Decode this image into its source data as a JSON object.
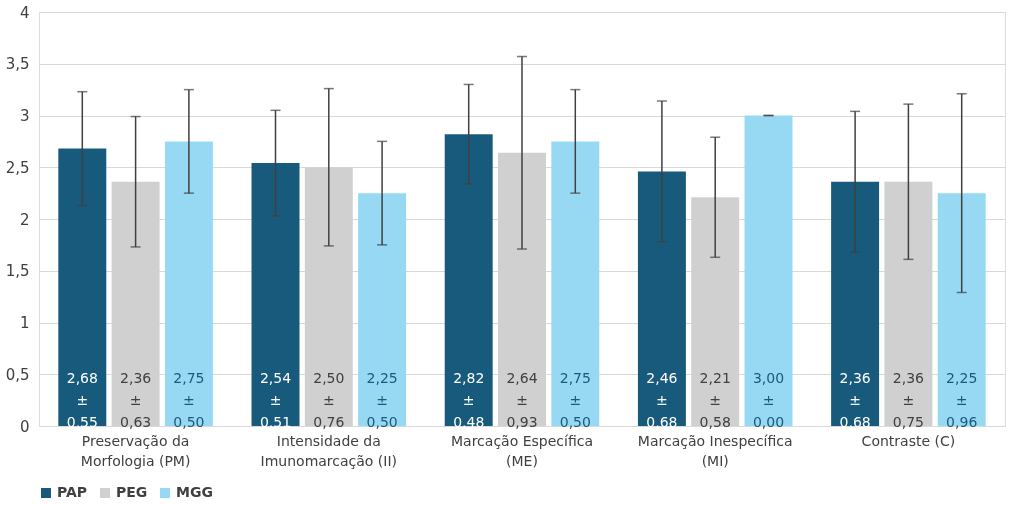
{
  "chart_data": {
    "type": "bar",
    "categories": [
      "Preservação da\nMorfologia (PM)",
      "Intensidade da\nImunomarcação (II)",
      "Marcação Específica\n(ME)",
      "Marcação Inespecífica\n(MI)",
      "Contraste (C)"
    ],
    "series": [
      {
        "name": "PAP",
        "color": "#175a7c",
        "values": [
          2.68,
          2.54,
          2.82,
          2.46,
          2.36
        ],
        "errors": [
          0.55,
          0.51,
          0.48,
          0.68,
          0.68
        ],
        "value_labels": [
          "2,68\n±\n0,55",
          "2,54\n±\n0,51",
          "2,82\n±\n0,48",
          "2,46\n±\n0,68",
          "2,36\n±\n0,68"
        ]
      },
      {
        "name": "PEG",
        "color": "#d0d0d0",
        "values": [
          2.36,
          2.5,
          2.64,
          2.21,
          2.36
        ],
        "errors": [
          0.63,
          0.76,
          0.93,
          0.58,
          0.75
        ],
        "value_labels": [
          "2,36\n±\n0,63",
          "2,50\n±\n0,76",
          "2,64\n±\n0,93",
          "2,21\n±\n0,58",
          "2,36\n±\n0,75"
        ]
      },
      {
        "name": "MGG",
        "color": "#97d9f3",
        "values": [
          2.75,
          2.25,
          2.75,
          3.0,
          2.25
        ],
        "errors": [
          0.5,
          0.5,
          0.5,
          0.0,
          0.96
        ],
        "value_labels": [
          "2,75\n±\n0,50",
          "2,25\n±\n0,50",
          "2,75\n±\n0,50",
          "3,00\n±\n0,00",
          "2,25\n±\n0,96"
        ]
      }
    ],
    "ylim": [
      0,
      4
    ],
    "yticks": [
      0,
      {
        "value": 0.5,
        "label": "0,5"
      },
      1,
      {
        "value": 1.5,
        "label": "1,5"
      },
      2,
      {
        "value": 2.5,
        "label": "2,5"
      },
      3,
      {
        "value": 3.5,
        "label": "3,5"
      },
      4
    ],
    "grid": "y",
    "legend": "bottom"
  }
}
